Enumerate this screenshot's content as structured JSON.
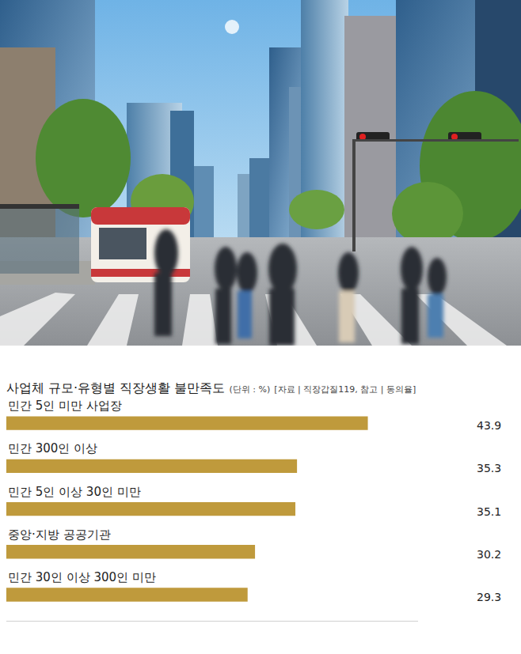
{
  "chart_data": {
    "type": "bar",
    "orientation": "horizontal",
    "title": "사업체 규모·유형별 직장생활 불만족도",
    "subtitle": "(단위 : %)",
    "annotations": [
      "[자료 | 직장갑질119, 참고 | 동의율]"
    ],
    "categories": [
      "민간 5인 미만 사업장",
      "민간 300인 이상",
      "민간 5인 이상 30인 미만",
      "중앙·지방 공공기관",
      "민간 30인 이상 300인 미만"
    ],
    "values": [
      43.9,
      35.3,
      35.1,
      30.2,
      29.3
    ],
    "color": "#bf9a3c",
    "xlim": [
      0,
      50
    ],
    "tick_labels": false,
    "data_labels": true,
    "grid": false
  }
}
